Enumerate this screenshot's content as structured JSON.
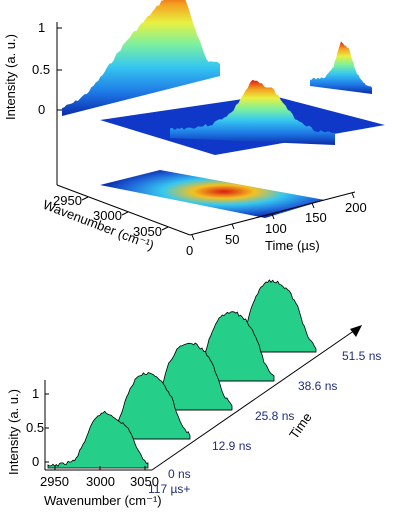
{
  "chart_data": [
    {
      "type": "area",
      "panel": "top",
      "zlabel": "Intensity (a. u.)",
      "xlabel": "Wavenumber (cm⁻¹)",
      "ylabel": "Time (µs)",
      "z_ticks": [
        "1",
        "0.5",
        "0"
      ],
      "wavenumber_ticks": [
        "2950",
        "3000",
        "3050"
      ],
      "time_ticks": [
        "0",
        "50",
        "100",
        "150",
        "200"
      ],
      "colormap": [
        "#0a2aa8",
        "#1e78e6",
        "#36c7f0",
        "#7cf0a0",
        "#e8f040",
        "#f5a020",
        "#d81a10"
      ],
      "slice_wavenumber": {
        "x": [
          2940,
          2950,
          2960,
          2970,
          2980,
          2990,
          3000,
          3010,
          3020,
          3030,
          3040,
          3050,
          3060
        ],
        "y": [
          0.02,
          0.05,
          0.12,
          0.25,
          0.42,
          0.58,
          0.7,
          0.82,
          0.95,
          1.0,
          0.55,
          0.12,
          0.05
        ]
      },
      "slice_time": {
        "x": [
          0,
          25,
          50,
          75,
          100,
          125,
          150,
          175,
          200
        ],
        "y": [
          0.02,
          0.05,
          0.12,
          0.35,
          0.95,
          0.8,
          0.3,
          0.08,
          0.02
        ]
      }
    },
    {
      "type": "area",
      "panel": "bottom",
      "ylabel": "Intensity (a. u.)",
      "xlabel": "Wavenumber (cm⁻¹)",
      "zlabel": "Time",
      "y_ticks": [
        "1",
        "0.5",
        "0"
      ],
      "x_ticks": [
        "2950",
        "3000",
        "3050"
      ],
      "fill_color": "#25cf8a",
      "series": [
        {
          "name": "0 ns",
          "x": [
            2945,
            2960,
            2975,
            2985,
            2995,
            3005,
            3015,
            3025,
            3035,
            3045,
            3055
          ],
          "y": [
            0.02,
            0.05,
            0.1,
            0.35,
            0.62,
            0.75,
            0.7,
            0.62,
            0.5,
            0.2,
            0.05
          ]
        },
        {
          "name": "12.9 ns",
          "x": [
            2945,
            2960,
            2975,
            2985,
            2995,
            3005,
            3015,
            3025,
            3035,
            3045,
            3055
          ],
          "y": [
            0.02,
            0.06,
            0.2,
            0.55,
            0.8,
            0.88,
            0.85,
            0.75,
            0.55,
            0.2,
            0.05
          ]
        },
        {
          "name": "25.8 ns",
          "x": [
            2945,
            2960,
            2975,
            2985,
            2995,
            3005,
            3015,
            3025,
            3035,
            3045,
            3055
          ],
          "y": [
            0.02,
            0.06,
            0.22,
            0.6,
            0.82,
            0.9,
            0.88,
            0.78,
            0.58,
            0.22,
            0.05
          ]
        },
        {
          "name": "38.6 ns",
          "x": [
            2945,
            2960,
            2975,
            2985,
            2995,
            3005,
            3015,
            3025,
            3035,
            3045,
            3055
          ],
          "y": [
            0.02,
            0.06,
            0.22,
            0.6,
            0.85,
            0.92,
            0.9,
            0.8,
            0.6,
            0.22,
            0.05
          ]
        },
        {
          "name": "51.5 ns",
          "x": [
            2945,
            2960,
            2975,
            2985,
            2995,
            3005,
            3015,
            3025,
            3035,
            3045,
            3055
          ],
          "y": [
            0.02,
            0.06,
            0.22,
            0.62,
            0.88,
            0.95,
            0.92,
            0.82,
            0.6,
            0.22,
            0.05
          ]
        }
      ],
      "time_offset_label": "117 µs+"
    }
  ]
}
